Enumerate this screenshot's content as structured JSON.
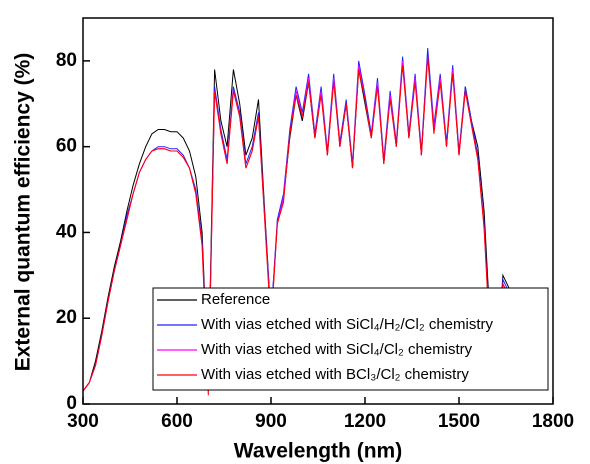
{
  "chart_data": {
    "type": "line",
    "x_label": "Wavelength (nm)",
    "y_label": "External quantum efficiency (%)",
    "x": [
      300,
      320,
      340,
      360,
      380,
      400,
      420,
      440,
      460,
      480,
      500,
      520,
      540,
      560,
      580,
      600,
      620,
      640,
      660,
      680,
      700,
      720,
      740,
      760,
      780,
      800,
      820,
      840,
      860,
      880,
      900,
      920,
      940,
      960,
      980,
      1000,
      1020,
      1040,
      1060,
      1080,
      1100,
      1120,
      1140,
      1160,
      1180,
      1200,
      1220,
      1240,
      1260,
      1280,
      1300,
      1320,
      1340,
      1360,
      1380,
      1400,
      1420,
      1440,
      1460,
      1480,
      1500,
      1520,
      1540,
      1560,
      1580,
      1600,
      1620,
      1640,
      1660
    ],
    "series": [
      {
        "name": "Reference",
        "color": "#000000",
        "values": [
          3,
          5,
          10,
          17,
          25,
          32,
          38,
          45,
          51,
          56,
          60,
          63,
          64,
          64,
          63.5,
          63.5,
          62,
          59,
          53,
          40,
          5,
          78,
          66,
          60,
          78,
          70,
          58,
          62,
          71,
          45,
          20,
          42,
          48,
          62,
          72,
          66,
          75,
          62,
          73,
          58,
          76,
          60,
          70,
          55,
          78,
          70,
          62,
          75,
          56,
          72,
          60,
          80,
          62,
          76,
          58,
          82,
          64,
          76,
          60,
          78,
          58,
          74,
          66,
          60,
          45,
          18,
          8,
          30,
          27
        ]
      },
      {
        "name": "With vias etched with SiCl₄/H₂/Cl₂ chemistry",
        "color": "#2222ff",
        "values": [
          3,
          5,
          9,
          16,
          24,
          31,
          37,
          44,
          49,
          54,
          57,
          59,
          60,
          60,
          59.5,
          59.5,
          58,
          55,
          50,
          38,
          4,
          74,
          64,
          57,
          74,
          68,
          56,
          60,
          68,
          44,
          20,
          43,
          49,
          64,
          74,
          68,
          77,
          63,
          74,
          59,
          77,
          61,
          71,
          56,
          80,
          72,
          63,
          76,
          57,
          73,
          61,
          81,
          63,
          77,
          59,
          83,
          65,
          77,
          61,
          79,
          59,
          74,
          66,
          58,
          42,
          15,
          6,
          29,
          26
        ]
      },
      {
        "name": "With vias etched with SiCl₄/Cl₂ chemistry",
        "color": "#ff00ff",
        "values": [
          3,
          5,
          9,
          16,
          24,
          31,
          37,
          43,
          49,
          54,
          57,
          59,
          59.5,
          59.5,
          59,
          59,
          57.5,
          55,
          49,
          37,
          3,
          73,
          63,
          56,
          73,
          67,
          55,
          59,
          67,
          43,
          19,
          42,
          48,
          63,
          73,
          67,
          76,
          62,
          73,
          58,
          76,
          60,
          70,
          55,
          79,
          71,
          62,
          75,
          56,
          72,
          60,
          80,
          62,
          76,
          58,
          81,
          64,
          76,
          60,
          78,
          58,
          73,
          65,
          57,
          41,
          14,
          5,
          28,
          25
        ]
      },
      {
        "name": "With vias etched with BCl₃/Cl₂ chemistry",
        "color": "#ff0000",
        "values": [
          3,
          5,
          9,
          16,
          24,
          31,
          37,
          43,
          49,
          54,
          57,
          59,
          59.5,
          59.5,
          59,
          59,
          57.5,
          55,
          49,
          37,
          2,
          73,
          63,
          56,
          73,
          67,
          55,
          59,
          67,
          43,
          18,
          42,
          47,
          63,
          72,
          67,
          75,
          62,
          72,
          58,
          75,
          60,
          70,
          55,
          78,
          71,
          62,
          74,
          56,
          71,
          60,
          79,
          62,
          75,
          58,
          81,
          63,
          75,
          60,
          77,
          58,
          73,
          65,
          57,
          41,
          14,
          5,
          28,
          25
        ]
      }
    ],
    "xlim": [
      300,
      1800
    ],
    "xticks": [
      300,
      600,
      900,
      1200,
      1500,
      1800
    ],
    "ylim": [
      0,
      90
    ],
    "yticks": [
      0,
      20,
      40,
      60,
      80
    ],
    "legend": "lower right"
  }
}
